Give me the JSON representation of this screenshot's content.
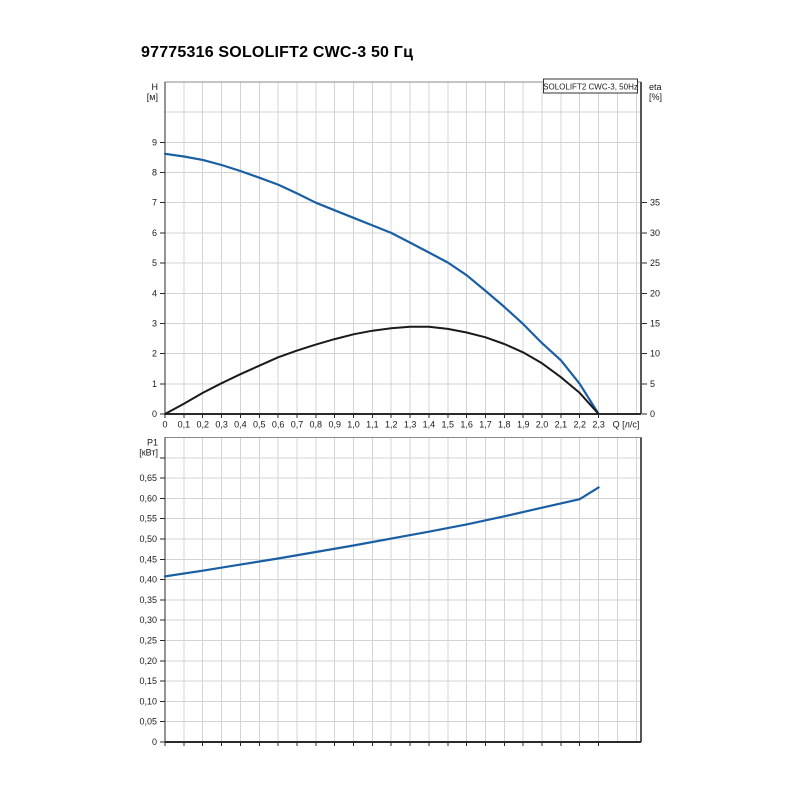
{
  "title": "97775316 SOLOLIFT2 CWC-3 50 Гц",
  "colors": {
    "curve_blue": "#1a5fa4",
    "curve_black": "#1a1a1a",
    "grid": "#d4d4d4",
    "axis": "#2a2a2a",
    "border": "#8a8a8a",
    "right_border": "#555555",
    "text": "#1a1a1a",
    "legend_border": "#333333",
    "background": "#ffffff"
  },
  "chart_data": [
    {
      "type": "line",
      "name": "head-efficiency-chart",
      "legend": "SOLOLIFT2 CWC-3, 50Hz",
      "x": {
        "label": "Q [л/с]",
        "min": 0,
        "max": 2.525,
        "grid_step": 0.1,
        "tick_step": 0.1,
        "tick_max": 2.3,
        "label_max": 2.3,
        "decimals": 1,
        "show_labels": true
      },
      "y_left": {
        "label_lines": [
          "H",
          "[м]"
        ],
        "min": 0,
        "max": 11,
        "grid_step": 1,
        "tick_step": 1,
        "tick_max": 9,
        "label_max": 9,
        "decimals": 0
      },
      "y_right": {
        "label_lines": [
          "eta",
          "[%]"
        ],
        "min": 0,
        "max": 55,
        "tick_step": 5,
        "tick_max": 35,
        "label_max": 35,
        "decimals": 0
      },
      "series": [
        {
          "name": "head-curve",
          "axis": "left",
          "color": "#1a5fa4",
          "width": 2.2,
          "points": [
            [
              0,
              8.62
            ],
            [
              0.1,
              8.53
            ],
            [
              0.2,
              8.42
            ],
            [
              0.3,
              8.25
            ],
            [
              0.4,
              8.05
            ],
            [
              0.5,
              7.83
            ],
            [
              0.6,
              7.6
            ],
            [
              0.7,
              7.31
            ],
            [
              0.8,
              7.0
            ],
            [
              0.9,
              6.75
            ],
            [
              1.0,
              6.5
            ],
            [
              1.1,
              6.25
            ],
            [
              1.2,
              6.0
            ],
            [
              1.3,
              5.68
            ],
            [
              1.4,
              5.35
            ],
            [
              1.5,
              5.02
            ],
            [
              1.6,
              4.6
            ],
            [
              1.7,
              4.08
            ],
            [
              1.8,
              3.55
            ],
            [
              1.9,
              2.98
            ],
            [
              2.0,
              2.35
            ],
            [
              2.1,
              1.78
            ],
            [
              2.2,
              1.0
            ],
            [
              2.3,
              0
            ]
          ]
        },
        {
          "name": "efficiency-curve",
          "axis": "right",
          "color": "#1a1a1a",
          "width": 2,
          "points": [
            [
              0,
              0
            ],
            [
              0.1,
              1.7
            ],
            [
              0.2,
              3.5
            ],
            [
              0.3,
              5.1
            ],
            [
              0.4,
              6.6
            ],
            [
              0.5,
              8.0
            ],
            [
              0.6,
              9.4
            ],
            [
              0.7,
              10.5
            ],
            [
              0.8,
              11.5
            ],
            [
              0.9,
              12.4
            ],
            [
              1.0,
              13.2
            ],
            [
              1.1,
              13.8
            ],
            [
              1.2,
              14.2
            ],
            [
              1.3,
              14.45
            ],
            [
              1.4,
              14.45
            ],
            [
              1.5,
              14.1
            ],
            [
              1.6,
              13.5
            ],
            [
              1.7,
              12.7
            ],
            [
              1.8,
              11.6
            ],
            [
              1.9,
              10.2
            ],
            [
              2.0,
              8.4
            ],
            [
              2.1,
              6.1
            ],
            [
              2.2,
              3.5
            ],
            [
              2.3,
              0
            ]
          ]
        }
      ]
    },
    {
      "type": "line",
      "name": "power-chart",
      "legend": null,
      "x": {
        "label": "",
        "min": 0,
        "max": 2.525,
        "grid_step": 0.1,
        "tick_step": 0.1,
        "tick_max": 2.3,
        "label_max": 2.3,
        "decimals": 1,
        "show_labels": false
      },
      "y_left": {
        "label_lines": [
          "P1",
          "[кВт]"
        ],
        "min": 0,
        "max": 0.75,
        "grid_step": 0.05,
        "tick_step": 0.05,
        "tick_max": 0.7,
        "label_max": 0.65,
        "decimals": 2
      },
      "y_right": null,
      "series": [
        {
          "name": "power-curve",
          "axis": "left",
          "color": "#1a5fa4",
          "width": 2.2,
          "points": [
            [
              0,
              0.408
            ],
            [
              0.2,
              0.422
            ],
            [
              0.4,
              0.437
            ],
            [
              0.6,
              0.452
            ],
            [
              0.8,
              0.468
            ],
            [
              1.0,
              0.484
            ],
            [
              1.2,
              0.501
            ],
            [
              1.4,
              0.518
            ],
            [
              1.6,
              0.536
            ],
            [
              1.8,
              0.556
            ],
            [
              2.0,
              0.577
            ],
            [
              2.2,
              0.598
            ],
            [
              2.3,
              0.627
            ]
          ]
        }
      ]
    }
  ]
}
